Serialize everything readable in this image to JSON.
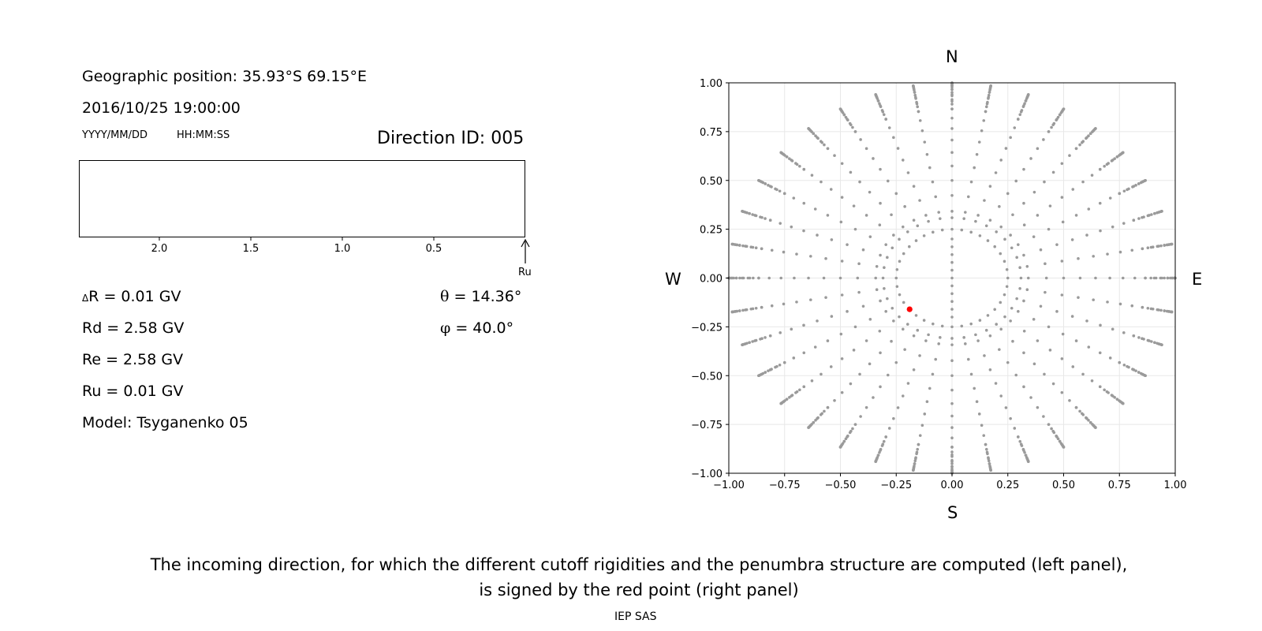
{
  "left_panel": {
    "geo_position": "Geographic position: 35.93°S 69.15°E",
    "datetime": "2016/10/25 19:00:00",
    "date_format": "YYYY/MM/DD",
    "time_format": "HH:MM:SS",
    "direction_id": "Direction ID: 005",
    "penumbra_axis": {
      "ticks": [
        "2.0",
        "1.5",
        "1.0",
        "0.5"
      ],
      "tick_values": [
        2.0,
        1.5,
        1.0,
        0.5
      ],
      "marker_label": "Ru"
    },
    "values": {
      "delta_r_symbol": "Δ",
      "delta_r_text": "R = 0.01 GV",
      "rd": "Rd = 2.58 GV",
      "re": "Re = 2.58 GV",
      "ru": "Ru = 0.01 GV",
      "model": "Model: Tsyganenko 05",
      "theta_symbol": "θ",
      "theta_text": " = 14.36°",
      "phi_symbol": "φ",
      "phi_text": " = 40.0°"
    }
  },
  "chart_data": {
    "type": "scatter",
    "compass": {
      "north": "N",
      "south": "S",
      "west": "W",
      "east": "E"
    },
    "xlim": [
      -1.0,
      1.0
    ],
    "ylim": [
      -1.0,
      1.0
    ],
    "grid": true,
    "xticks": [
      "−1.00",
      "−0.75",
      "−0.50",
      "−0.25",
      "0.00",
      "0.25",
      "0.50",
      "0.75",
      "1.00"
    ],
    "yticks": [
      "1.00",
      "0.75",
      "0.50",
      "0.25",
      "0.00",
      "−0.25",
      "−0.50",
      "−0.75",
      "−1.00"
    ],
    "tick_values": [
      -1.0,
      -0.75,
      -0.5,
      -0.25,
      0.0,
      0.25,
      0.5,
      0.75,
      1.0
    ],
    "grid_pattern": {
      "center": [
        0.0,
        0.0
      ],
      "azimuth_step_deg": 10,
      "radii": [
        0.042,
        0.087,
        0.139,
        0.2,
        0.25,
        0.309,
        0.342,
        0.423,
        0.5,
        0.574,
        0.643,
        0.707,
        0.766,
        0.819,
        0.866,
        0.906,
        0.94,
        0.966,
        0.985,
        0.996,
        1.0
      ],
      "dense_radii": [
        0.866,
        0.891,
        0.914,
        0.934,
        0.951,
        0.966,
        0.978,
        0.988,
        0.995,
        1.0
      ],
      "inner_ring_radius": 0.25,
      "inner_ring_azimuth_step_deg": 10
    },
    "selected_point": {
      "x": -0.19,
      "y": -0.16
    },
    "point_color": "#9a9a9a",
    "highlight_color": "#ff0000"
  },
  "caption": {
    "line1": "The incoming direction, for which the different cutoff rigidities and the penumbra structure are computed (left panel),",
    "line2": "is signed by the red point (right panel)",
    "credit": "IEP SAS"
  }
}
